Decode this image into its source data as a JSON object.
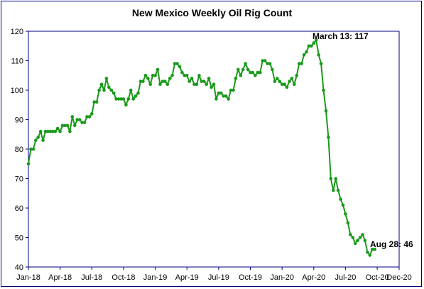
{
  "chart_data": {
    "type": "line",
    "title": "New Mexico Weekly Oil Rig Count",
    "ylim": [
      40,
      120
    ],
    "y_ticks": [
      40,
      50,
      60,
      70,
      80,
      90,
      100,
      110,
      120
    ],
    "x_tick_labels": [
      "Jan-18",
      "Apr-18",
      "Jul-18",
      "Oct-18",
      "Jan-19",
      "Apr-19",
      "Jul-19",
      "Oct-19",
      "Jan-20",
      "Apr-20",
      "Jul-20",
      "Oct-20",
      "Dec-20"
    ],
    "x_tick_weeks": [
      0,
      13,
      26,
      39,
      52,
      65,
      78,
      91,
      104,
      117,
      130,
      143,
      152
    ],
    "grid": false,
    "line_color": "#1a9a1a",
    "axis_color": "#000080",
    "series": [
      {
        "values": [
          75,
          80,
          80,
          83,
          84,
          86,
          83,
          86,
          86,
          86,
          86,
          86,
          87,
          86,
          88,
          88,
          88,
          86,
          91,
          88,
          90,
          90,
          89,
          89,
          91,
          91,
          92,
          96,
          96,
          100,
          102,
          100,
          104,
          101,
          100,
          99,
          97,
          97,
          97,
          97,
          95,
          97,
          100,
          97,
          98,
          99,
          103,
          103,
          105,
          104,
          102,
          105,
          105,
          107,
          102,
          103,
          103,
          102,
          104,
          105,
          109,
          109,
          108,
          106,
          105,
          105,
          103,
          104,
          102,
          102,
          105,
          103,
          103,
          102,
          104,
          101,
          102,
          97,
          99,
          99,
          98,
          98,
          97,
          100,
          100,
          104,
          107,
          105,
          107,
          109,
          107,
          106,
          106,
          105,
          106,
          106,
          110,
          110,
          109,
          109,
          107,
          103,
          104,
          103,
          102,
          102,
          101,
          103,
          104,
          102,
          105,
          109,
          109,
          112,
          113,
          115,
          115,
          116,
          117,
          112,
          109,
          100,
          93,
          84,
          70,
          66,
          70,
          66,
          63,
          61,
          58,
          55,
          51,
          50,
          48,
          49,
          50,
          51,
          49,
          45,
          44,
          46,
          46
        ]
      }
    ],
    "annotations": [
      {
        "text": "March 13: 117"
      },
      {
        "text": "Aug 28: 46"
      }
    ]
  }
}
